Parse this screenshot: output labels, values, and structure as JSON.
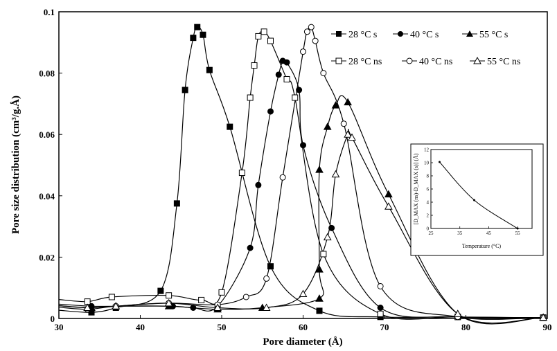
{
  "chart_data": [
    {
      "type": "line",
      "title": "",
      "xlabel": "Pore diameter (Å)",
      "ylabel": "Pore size distribution (cm³/g.Å)",
      "xlim": [
        30,
        90
      ],
      "ylim": [
        0,
        0.1
      ],
      "xticks": [
        "30",
        "40",
        "50",
        "60",
        "70",
        "80",
        "90"
      ],
      "yticks": [
        "0",
        "0.02",
        "0.04",
        "0.06",
        "0.08",
        "0.1"
      ],
      "grid": false,
      "legend_position": "top-right",
      "series": [
        {
          "name": "28 °C s",
          "marker": "square-filled",
          "color": "#000000",
          "points": [
            [
              34,
              0.002
            ],
            [
              37,
              0.0035
            ],
            [
              42.5,
              0.009
            ],
            [
              44.5,
              0.0375
            ],
            [
              45.5,
              0.0745
            ],
            [
              46.5,
              0.0915
            ],
            [
              47,
              0.095
            ],
            [
              47.7,
              0.0925
            ],
            [
              48.5,
              0.081
            ],
            [
              51,
              0.0625
            ],
            [
              56,
              0.017
            ],
            [
              62,
              0.0025
            ],
            [
              69.5,
              0.0005
            ],
            [
              79,
              0.0005
            ],
            [
              89.5,
              0.0002
            ]
          ]
        },
        {
          "name": "40 °C s",
          "marker": "circle-filled",
          "color": "#000000",
          "points": [
            [
              34,
              0.004
            ],
            [
              37,
              0.004
            ],
            [
              44,
              0.004
            ],
            [
              46.5,
              0.0035
            ],
            [
              49.5,
              0.004
            ],
            [
              53.5,
              0.023
            ],
            [
              54.5,
              0.0435
            ],
            [
              56,
              0.0675
            ],
            [
              57,
              0.0795
            ],
            [
              57.5,
              0.084
            ],
            [
              58,
              0.0835
            ],
            [
              59.5,
              0.0745
            ],
            [
              60,
              0.0565
            ],
            [
              63.5,
              0.0295
            ],
            [
              69.5,
              0.0035
            ],
            [
              79,
              0.0005
            ],
            [
              89.5,
              0.0003
            ]
          ]
        },
        {
          "name": "55 °C s",
          "marker": "triangle-filled",
          "color": "#000000",
          "points": [
            [
              34,
              0.0035
            ],
            [
              37,
              0.004
            ],
            [
              43.5,
              0.004
            ],
            [
              49.5,
              0.003
            ],
            [
              55,
              0.0035
            ],
            [
              62,
              0.0065
            ],
            [
              62,
              0.016
            ],
            [
              62,
              0.0485
            ],
            [
              63,
              0.0625
            ],
            [
              64,
              0.0695
            ],
            [
              65.5,
              0.0705
            ],
            [
              70.5,
              0.0405
            ],
            [
              79,
              0.0015
            ],
            [
              89.5,
              0.0003
            ]
          ]
        },
        {
          "name": "28 °C ns",
          "marker": "square-open",
          "color": "#000000",
          "points": [
            [
              33.5,
              0.0055
            ],
            [
              36.5,
              0.007
            ],
            [
              43.5,
              0.0075
            ],
            [
              47.5,
              0.006
            ],
            [
              50,
              0.0085
            ],
            [
              52.5,
              0.0475
            ],
            [
              53.5,
              0.072
            ],
            [
              54,
              0.0825
            ],
            [
              54.5,
              0.092
            ],
            [
              55.2,
              0.0935
            ],
            [
              56,
              0.0905
            ],
            [
              58,
              0.078
            ],
            [
              59,
              0.072
            ],
            [
              62.5,
              0.021
            ],
            [
              69.5,
              0.0015
            ],
            [
              79,
              0.0005
            ],
            [
              89.5,
              0.0003
            ]
          ]
        },
        {
          "name": "40 °C ns",
          "marker": "circle-open",
          "color": "#000000",
          "points": [
            [
              33.5,
              0.003
            ],
            [
              37,
              0.004
            ],
            [
              43.5,
              0.005
            ],
            [
              49.5,
              0.0045
            ],
            [
              53,
              0.007
            ],
            [
              55.5,
              0.013
            ],
            [
              57.5,
              0.046
            ],
            [
              60,
              0.087
            ],
            [
              60.5,
              0.0935
            ],
            [
              61,
              0.095
            ],
            [
              61.5,
              0.0905
            ],
            [
              62.5,
              0.08
            ],
            [
              65,
              0.0635
            ],
            [
              69.5,
              0.0105
            ],
            [
              79,
              0.0005
            ],
            [
              89.5,
              0.0003
            ]
          ]
        },
        {
          "name": "55 °C ns",
          "marker": "triangle-open",
          "color": "#000000",
          "points": [
            [
              33.5,
              0.0035
            ],
            [
              37,
              0.004
            ],
            [
              43.5,
              0.005
            ],
            [
              49.5,
              0.0035
            ],
            [
              55.5,
              0.0035
            ],
            [
              60,
              0.008
            ],
            [
              63,
              0.0265
            ],
            [
              64,
              0.047
            ],
            [
              65.5,
              0.06
            ],
            [
              66,
              0.059
            ],
            [
              70.5,
              0.0365
            ],
            [
              79,
              0.0015
            ],
            [
              89.5,
              0.0003
            ]
          ]
        }
      ]
    },
    {
      "type": "line",
      "title": "",
      "xlabel": "Temperature (°C)",
      "ylabel": "[D_MAX (ns)-D_MAX (s)] (Å)",
      "xlim": [
        25,
        60
      ],
      "ylim": [
        0,
        12
      ],
      "xticks": [
        "25",
        "35",
        "45",
        "55"
      ],
      "yticks": [
        "0",
        "2",
        "4",
        "6",
        "8",
        "10",
        "12"
      ],
      "series": [
        {
          "name": "",
          "points": [
            [
              28,
              10.1
            ],
            [
              40,
              4.3
            ],
            [
              55,
              0.0
            ]
          ]
        }
      ]
    }
  ]
}
